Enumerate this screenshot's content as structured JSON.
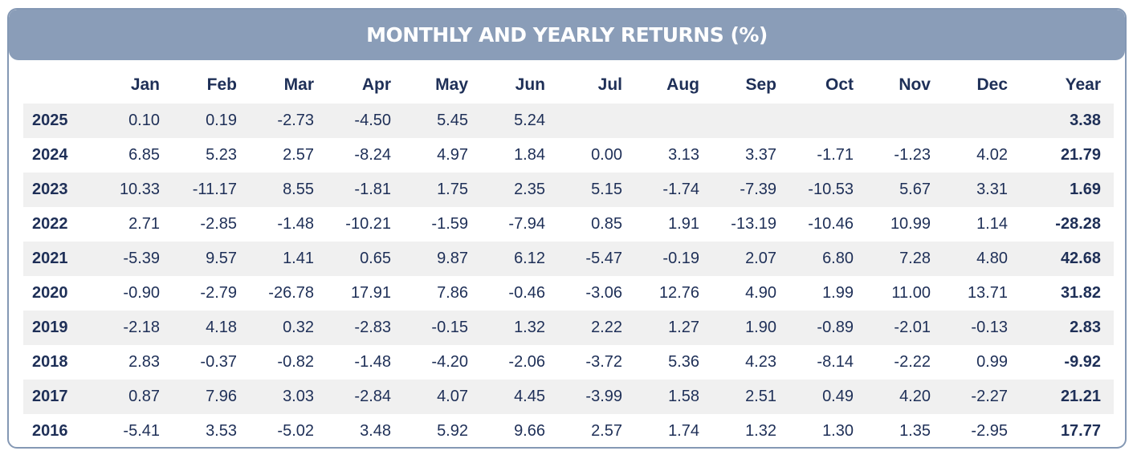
{
  "title": "MONTHLY AND YEARLY RETURNS (%)",
  "columns": [
    "Jan",
    "Feb",
    "Mar",
    "Apr",
    "May",
    "Jun",
    "Jul",
    "Aug",
    "Sep",
    "Oct",
    "Nov",
    "Dec",
    "Year"
  ],
  "rows": [
    {
      "year": "2025",
      "months": [
        "0.10",
        "0.19",
        "-2.73",
        "-4.50",
        "5.45",
        "5.24",
        "",
        "",
        "",
        "",
        "",
        ""
      ],
      "total": "3.38"
    },
    {
      "year": "2024",
      "months": [
        "6.85",
        "5.23",
        "2.57",
        "-8.24",
        "4.97",
        "1.84",
        "0.00",
        "3.13",
        "3.37",
        "-1.71",
        "-1.23",
        "4.02"
      ],
      "total": "21.79"
    },
    {
      "year": "2023",
      "months": [
        "10.33",
        "-11.17",
        "8.55",
        "-1.81",
        "1.75",
        "2.35",
        "5.15",
        "-1.74",
        "-7.39",
        "-10.53",
        "5.67",
        "3.31"
      ],
      "total": "1.69"
    },
    {
      "year": "2022",
      "months": [
        "2.71",
        "-2.85",
        "-1.48",
        "-10.21",
        "-1.59",
        "-7.94",
        "0.85",
        "1.91",
        "-13.19",
        "-10.46",
        "10.99",
        "1.14"
      ],
      "total": "-28.28"
    },
    {
      "year": "2021",
      "months": [
        "-5.39",
        "9.57",
        "1.41",
        "0.65",
        "9.87",
        "6.12",
        "-5.47",
        "-0.19",
        "2.07",
        "6.80",
        "7.28",
        "4.80"
      ],
      "total": "42.68"
    },
    {
      "year": "2020",
      "months": [
        "-0.90",
        "-2.79",
        "-26.78",
        "17.91",
        "7.86",
        "-0.46",
        "-3.06",
        "12.76",
        "4.90",
        "1.99",
        "11.00",
        "13.71"
      ],
      "total": "31.82"
    },
    {
      "year": "2019",
      "months": [
        "-2.18",
        "4.18",
        "0.32",
        "-2.83",
        "-0.15",
        "1.32",
        "2.22",
        "1.27",
        "1.90",
        "-0.89",
        "-2.01",
        "-0.13"
      ],
      "total": "2.83"
    },
    {
      "year": "2018",
      "months": [
        "2.83",
        "-0.37",
        "-0.82",
        "-1.48",
        "-4.20",
        "-2.06",
        "-3.72",
        "5.36",
        "4.23",
        "-8.14",
        "-2.22",
        "0.99"
      ],
      "total": "-9.92"
    },
    {
      "year": "2017",
      "months": [
        "0.87",
        "7.96",
        "3.03",
        "-2.84",
        "4.07",
        "4.45",
        "-3.99",
        "1.58",
        "2.51",
        "0.49",
        "4.20",
        "-2.27"
      ],
      "total": "21.21"
    },
    {
      "year": "2016",
      "months": [
        "-5.41",
        "3.53",
        "-5.02",
        "3.48",
        "5.92",
        "9.66",
        "2.57",
        "1.74",
        "1.32",
        "1.30",
        "1.35",
        "-2.95"
      ],
      "total": "17.77"
    }
  ],
  "colors": {
    "header_bg": "#8a9db8",
    "text": "#1e2f57",
    "row_shade": "#f0f0f0"
  }
}
